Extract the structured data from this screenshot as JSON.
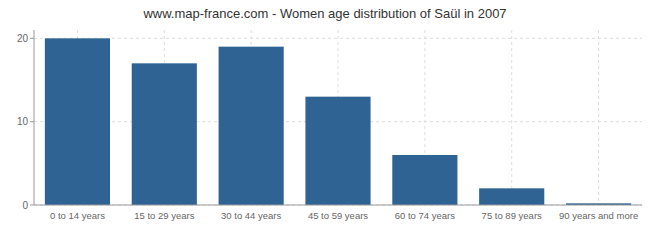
{
  "chart_data": {
    "type": "bar",
    "title": "www.map-france.com - Women age distribution of Saül in 2007",
    "categories": [
      "0 to 14 years",
      "15 to 29 years",
      "30 to 44 years",
      "45 to 59 years",
      "60 to 74 years",
      "75 to 89 years",
      "90 years and more"
    ],
    "values": [
      20,
      17,
      19,
      13,
      6,
      2,
      0.2
    ],
    "color": "#2e6393",
    "ylim": [
      0,
      21
    ],
    "yticks": [
      0,
      10,
      20
    ],
    "grid": true
  }
}
